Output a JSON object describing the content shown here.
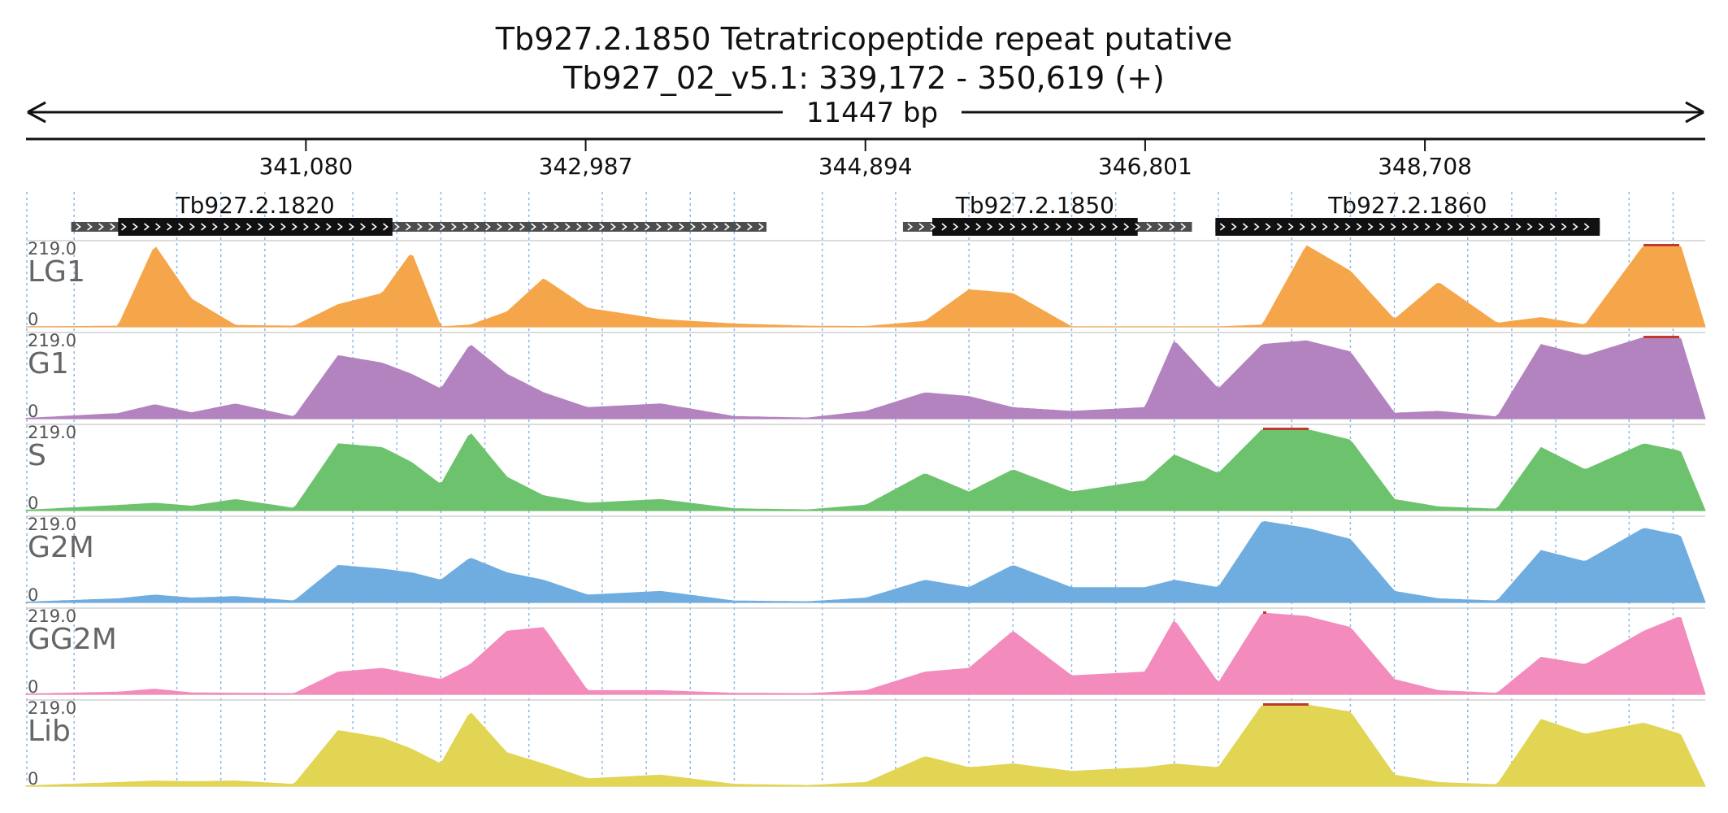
{
  "header": {
    "title": "Tb927.2.1850  Tetratricopeptide repeat  putative",
    "location": "Tb927_02_v5.1: 339,172 - 350,619 (+)",
    "span": "11447 bp"
  },
  "chart_data": {
    "type": "area",
    "x_range": [
      339172,
      350619
    ],
    "x_ticks": [
      "341,080",
      "342,987",
      "344,894",
      "346,801",
      "348,708"
    ],
    "x_tick_values": [
      341080,
      342987,
      344894,
      346801,
      348708
    ],
    "y_range": [
      0,
      219.0
    ],
    "y_max_label": "219.0",
    "y_min_label": "0",
    "genes": [
      {
        "name": "Tb927.2.1820",
        "utr": [
          339480,
          344220
        ],
        "cds": [
          339800,
          341670
        ],
        "strand": "+"
      },
      {
        "name": "Tb927.2.1850",
        "utr": [
          345150,
          347120
        ],
        "cds": [
          345350,
          346750
        ],
        "strand": "+"
      },
      {
        "name": "Tb927.2.1860",
        "utr": [
          347280,
          349900
        ],
        "cds": [
          347280,
          349900
        ],
        "strand": "+"
      }
    ],
    "tracks": [
      {
        "name": "LG1",
        "color": "#f5a64a"
      },
      {
        "name": "G1",
        "color": "#b383c0"
      },
      {
        "name": "S",
        "color": "#6dc36d"
      },
      {
        "name": "G2M",
        "color": "#6fade0"
      },
      {
        "name": "GG2M",
        "color": "#f38bbd"
      },
      {
        "name": "Lib",
        "color": "#e1d553"
      }
    ],
    "grid": true,
    "gridline_values": [
      339500,
      340200,
      340500,
      340800,
      341400,
      341700,
      342000,
      342300,
      342600,
      343100,
      343400,
      343700,
      344000,
      344600,
      345100,
      345600,
      345900,
      346300,
      346600,
      347000,
      347300,
      347800,
      348200,
      348500,
      349000,
      349300,
      349600,
      350100,
      350400
    ],
    "coverage_profile": [
      {
        "x": 339172,
        "LG1": 0,
        "G1": 1,
        "S": 1,
        "G2M": 1,
        "GG2M": 1,
        "Lib": 1
      },
      {
        "x": 339800,
        "LG1": 2,
        "G1": 14,
        "S": 14,
        "G2M": 10,
        "GG2M": 6,
        "Lib": 10
      },
      {
        "x": 340050,
        "LG1": 219,
        "G1": 38,
        "S": 20,
        "G2M": 20,
        "GG2M": 14,
        "Lib": 14
      },
      {
        "x": 340300,
        "LG1": 75,
        "G1": 16,
        "S": 12,
        "G2M": 12,
        "GG2M": 4,
        "Lib": 12
      },
      {
        "x": 340600,
        "LG1": 4,
        "G1": 40,
        "S": 30,
        "G2M": 16,
        "GG2M": 3,
        "Lib": 14
      },
      {
        "x": 341000,
        "LG1": 2,
        "G1": 5,
        "S": 6,
        "G2M": 4,
        "GG2M": 2,
        "Lib": 5
      },
      {
        "x": 341300,
        "LG1": 60,
        "G1": 170,
        "S": 180,
        "G2M": 100,
        "GG2M": 60,
        "Lib": 150
      },
      {
        "x": 341600,
        "LG1": 90,
        "G1": 150,
        "S": 170,
        "G2M": 90,
        "GG2M": 70,
        "Lib": 130
      },
      {
        "x": 341800,
        "LG1": 200,
        "G1": 120,
        "S": 130,
        "G2M": 80,
        "GG2M": 55,
        "Lib": 100
      },
      {
        "x": 342000,
        "LG1": 0,
        "G1": 80,
        "S": 70,
        "G2M": 60,
        "GG2M": 40,
        "Lib": 60
      },
      {
        "x": 342200,
        "LG1": 5,
        "G1": 200,
        "S": 210,
        "G2M": 120,
        "GG2M": 80,
        "Lib": 200
      },
      {
        "x": 342450,
        "LG1": 40,
        "G1": 120,
        "S": 90,
        "G2M": 80,
        "GG2M": 170,
        "Lib": 90
      },
      {
        "x": 342700,
        "LG1": 130,
        "G1": 70,
        "S": 40,
        "G2M": 60,
        "GG2M": 180,
        "Lib": 60
      },
      {
        "x": 343000,
        "LG1": 50,
        "G1": 30,
        "S": 20,
        "G2M": 20,
        "GG2M": 10,
        "Lib": 20
      },
      {
        "x": 343500,
        "LG1": 20,
        "G1": 40,
        "S": 30,
        "G2M": 30,
        "GG2M": 10,
        "Lib": 30
      },
      {
        "x": 344000,
        "LG1": 8,
        "G1": 6,
        "S": 5,
        "G2M": 4,
        "GG2M": 3,
        "Lib": 5
      },
      {
        "x": 344500,
        "LG1": 2,
        "G1": 2,
        "S": 2,
        "G2M": 2,
        "GG2M": 2,
        "Lib": 2
      },
      {
        "x": 344900,
        "LG1": 1,
        "G1": 20,
        "S": 15,
        "G2M": 12,
        "GG2M": 10,
        "Lib": 10
      },
      {
        "x": 345300,
        "LG1": 15,
        "G1": 70,
        "S": 100,
        "G2M": 60,
        "GG2M": 60,
        "Lib": 80
      },
      {
        "x": 345600,
        "LG1": 100,
        "G1": 60,
        "S": 50,
        "G2M": 40,
        "GG2M": 70,
        "Lib": 50
      },
      {
        "x": 345900,
        "LG1": 90,
        "G1": 30,
        "S": 110,
        "G2M": 100,
        "GG2M": 170,
        "Lib": 60
      },
      {
        "x": 346300,
        "LG1": 0,
        "G1": 20,
        "S": 50,
        "G2M": 40,
        "GG2M": 50,
        "Lib": 40
      },
      {
        "x": 346800,
        "LG1": 0,
        "G1": 30,
        "S": 80,
        "G2M": 40,
        "GG2M": 60,
        "Lib": 50
      },
      {
        "x": 347000,
        "LG1": 0,
        "G1": 210,
        "S": 150,
        "G2M": 60,
        "GG2M": 200,
        "Lib": 60
      },
      {
        "x": 347300,
        "LG1": 0,
        "G1": 80,
        "S": 100,
        "G2M": 40,
        "GG2M": 30,
        "Lib": 50
      },
      {
        "x": 347600,
        "LG1": 5,
        "G1": 200,
        "S": 219,
        "G2M": 219,
        "GG2M": 219,
        "Lib": 219
      },
      {
        "x": 347900,
        "LG1": 219,
        "G1": 210,
        "S": 219,
        "G2M": 200,
        "GG2M": 210,
        "Lib": 219
      },
      {
        "x": 348200,
        "LG1": 150,
        "G1": 180,
        "S": 190,
        "G2M": 170,
        "GG2M": 180,
        "Lib": 200
      },
      {
        "x": 348500,
        "LG1": 20,
        "G1": 15,
        "S": 30,
        "G2M": 30,
        "GG2M": 40,
        "Lib": 30
      },
      {
        "x": 348800,
        "LG1": 120,
        "G1": 20,
        "S": 10,
        "G2M": 10,
        "GG2M": 10,
        "Lib": 10
      },
      {
        "x": 349200,
        "LG1": 10,
        "G1": 5,
        "S": 4,
        "G2M": 4,
        "GG2M": 3,
        "Lib": 4
      },
      {
        "x": 349500,
        "LG1": 25,
        "G1": 200,
        "S": 170,
        "G2M": 140,
        "GG2M": 100,
        "Lib": 180
      },
      {
        "x": 349800,
        "LG1": 5,
        "G1": 170,
        "S": 110,
        "G2M": 110,
        "GG2M": 80,
        "Lib": 140
      },
      {
        "x": 350200,
        "LG1": 219,
        "G1": 219,
        "S": 180,
        "G2M": 200,
        "GG2M": 170,
        "Lib": 170
      },
      {
        "x": 350450,
        "LG1": 219,
        "G1": 219,
        "S": 160,
        "G2M": 180,
        "GG2M": 210,
        "Lib": 140
      },
      {
        "x": 350619,
        "LG1": 0,
        "G1": 0,
        "S": 0,
        "G2M": 0,
        "GG2M": 0,
        "Lib": 0
      }
    ]
  }
}
